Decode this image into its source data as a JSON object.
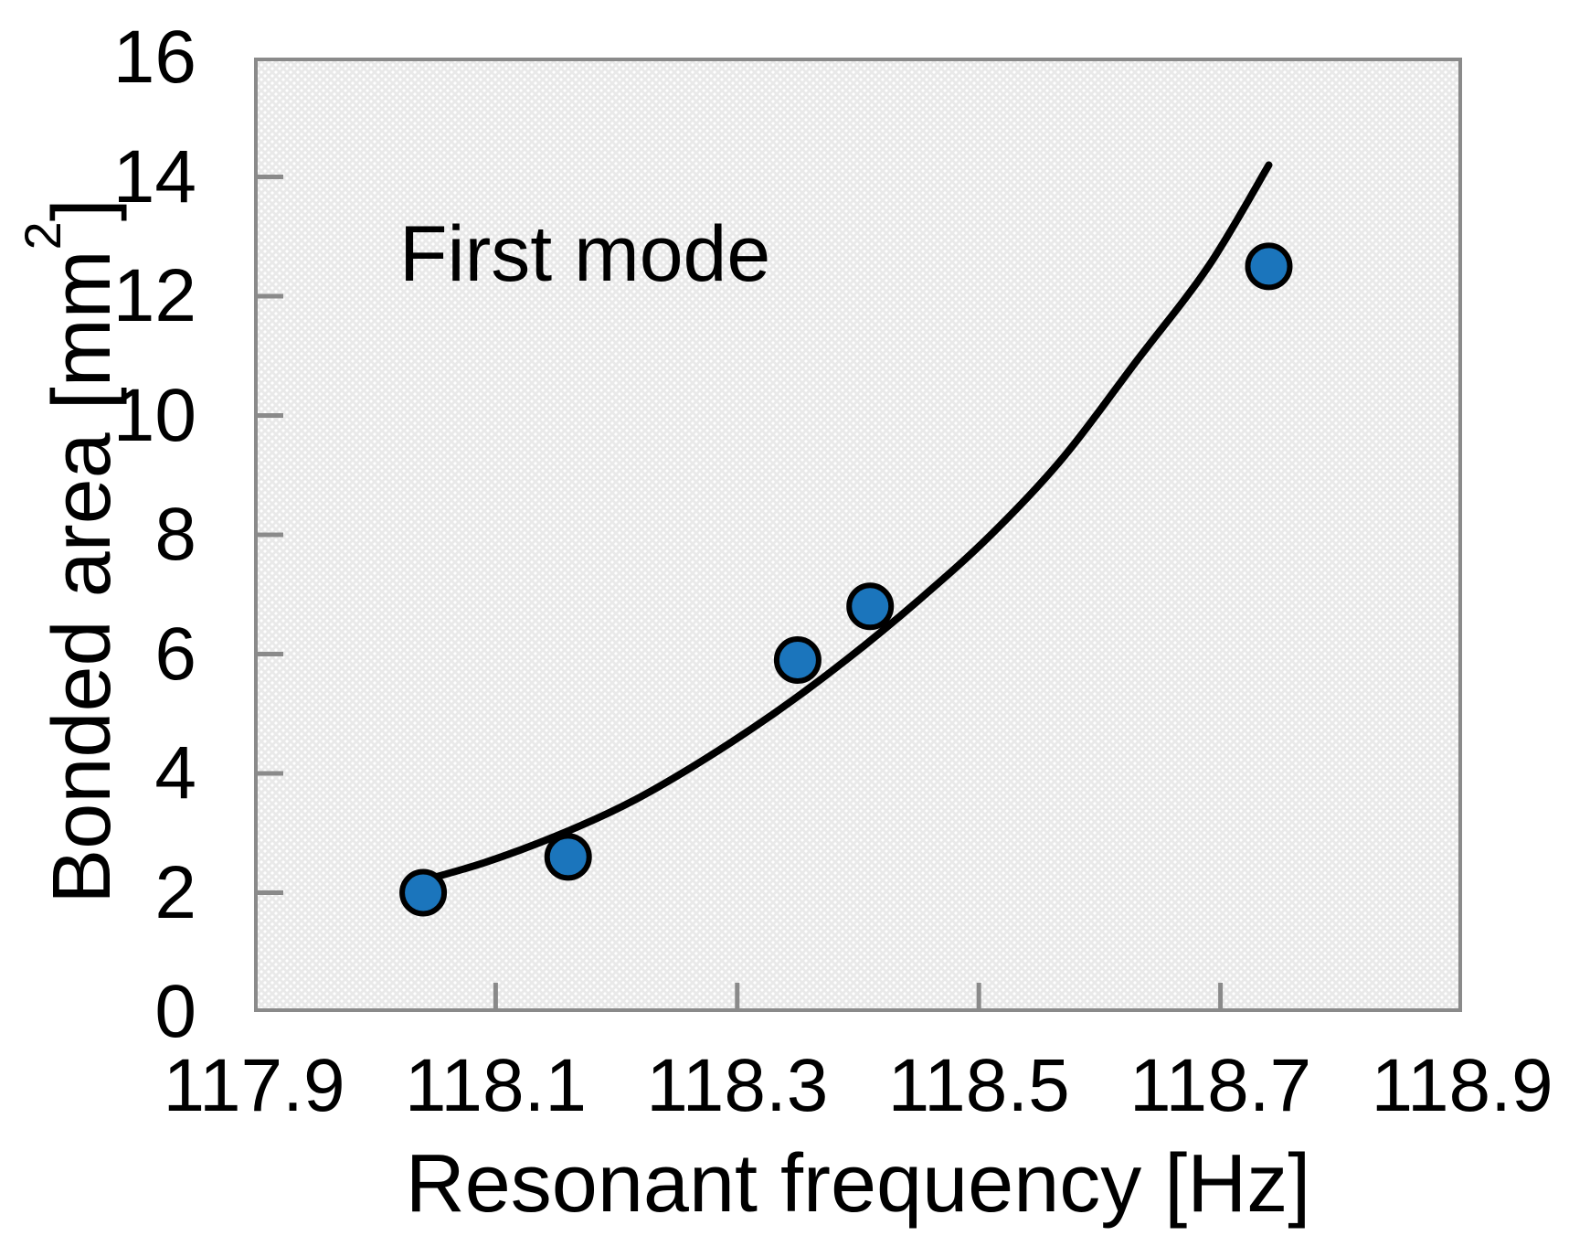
{
  "page": {
    "background": "#ffffff"
  },
  "chart_data": {
    "type": "scatter",
    "title": "",
    "annotation": "First mode",
    "xlabel": "Resonant frequency [Hz]",
    "ylabel": "Bonded area [mm²]",
    "ylabel_parts": {
      "prefix": "Bonded area [mm",
      "sup": "2",
      "suffix": "]"
    },
    "xlim": [
      117.9,
      118.9
    ],
    "ylim": [
      0,
      16
    ],
    "x_ticks": [
      117.9,
      118.1,
      118.3,
      118.5,
      118.7,
      118.9
    ],
    "x_tick_labels": [
      "117.9",
      "118.1",
      "118.3",
      "118.5",
      "118.7",
      "118.9"
    ],
    "y_ticks": [
      0,
      2,
      4,
      6,
      8,
      10,
      12,
      14,
      16
    ],
    "y_tick_labels": [
      "0",
      "2",
      "4",
      "6",
      "8",
      "10",
      "12",
      "14",
      "16"
    ],
    "grid": false,
    "legend": false,
    "plot_background": "#e9e9e9",
    "axis_color": "#8a8a8a",
    "series": [
      {
        "name": "bonded-area-points",
        "type": "scatter",
        "marker_fill": "#1b75bc",
        "marker_edge": "#000000",
        "points": [
          {
            "x": 118.04,
            "y": 2.0
          },
          {
            "x": 118.16,
            "y": 2.6
          },
          {
            "x": 118.35,
            "y": 5.9
          },
          {
            "x": 118.41,
            "y": 6.8
          },
          {
            "x": 118.74,
            "y": 12.5
          }
        ]
      },
      {
        "name": "trend-line",
        "type": "line",
        "color": "#000000",
        "points": [
          [
            118.03,
            2.15
          ],
          [
            118.09,
            2.5
          ],
          [
            118.15,
            2.95
          ],
          [
            118.21,
            3.5
          ],
          [
            118.27,
            4.2
          ],
          [
            118.33,
            5.0
          ],
          [
            118.39,
            5.9
          ],
          [
            118.45,
            6.9
          ],
          [
            118.51,
            8.0
          ],
          [
            118.57,
            9.3
          ],
          [
            118.63,
            10.9
          ],
          [
            118.69,
            12.5
          ],
          [
            118.74,
            14.2
          ]
        ]
      }
    ]
  }
}
